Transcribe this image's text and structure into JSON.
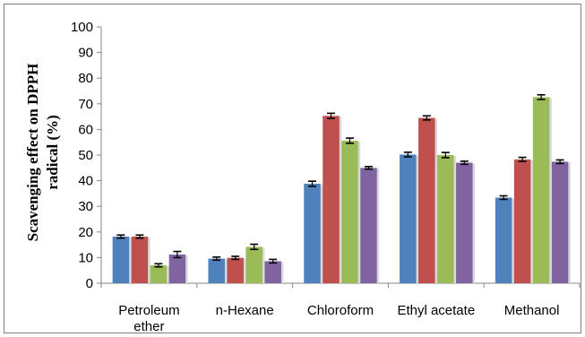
{
  "chart_data": {
    "type": "bar",
    "categories": [
      [
        "Petroleum",
        "ether"
      ],
      [
        "n-Hexane"
      ],
      [
        "Chloroform"
      ],
      [
        "Ethyl acetate"
      ],
      [
        "Methanol"
      ]
    ],
    "ylabel_lines": [
      "Scavenging effect on DPPH",
      "radical (%)"
    ],
    "ylim": [
      0,
      100
    ],
    "yticks": [
      "0",
      "10",
      "20",
      "30",
      "40",
      "50",
      "60",
      "70",
      "80",
      "90",
      "100"
    ],
    "grid": false,
    "legend": "none",
    "series_colors": [
      "#4f81bd",
      "#c0504d",
      "#9bbb59",
      "#8064a2"
    ],
    "series": [
      {
        "values": [
          18.2,
          9.6,
          38.8,
          50.2,
          33.4
        ],
        "errors": [
          0.6,
          0.6,
          1.0,
          0.9,
          0.7
        ]
      },
      {
        "values": [
          18.2,
          9.9,
          65.3,
          64.5,
          48.3
        ],
        "errors": [
          0.6,
          0.6,
          1.0,
          0.8,
          0.8
        ]
      },
      {
        "values": [
          7.0,
          14.2,
          55.6,
          50.0,
          72.6
        ],
        "errors": [
          0.6,
          1.0,
          1.0,
          1.0,
          0.9
        ]
      },
      {
        "values": [
          11.2,
          8.6,
          45.0,
          47.0,
          47.4
        ],
        "errors": [
          1.2,
          0.7,
          0.5,
          0.6,
          0.7
        ]
      }
    ]
  }
}
